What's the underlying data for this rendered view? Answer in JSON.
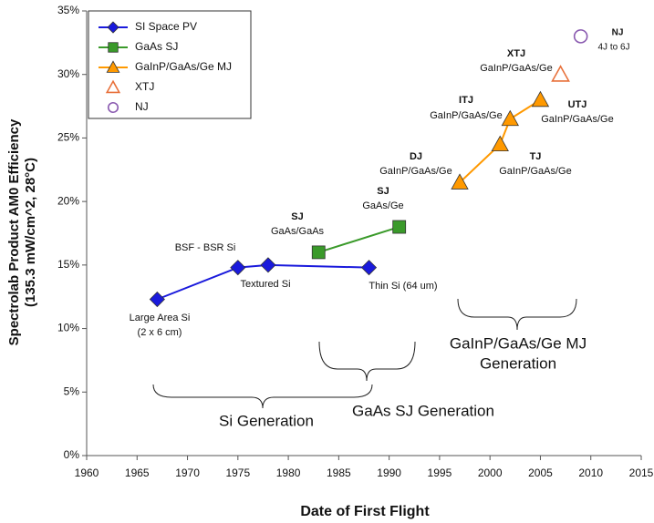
{
  "chart_data": {
    "type": "line",
    "xlabel": "Date of First Flight",
    "ylabel": [
      "Spectrolab Product AM0 Efficiency",
      "(135.3 mW/cm^2, 28°C)"
    ],
    "xlim": [
      1960,
      2015
    ],
    "xticks": [
      1960,
      1965,
      1970,
      1975,
      1980,
      1985,
      1990,
      1995,
      2000,
      2005,
      2010,
      2015
    ],
    "ylim": [
      0,
      35
    ],
    "yticks": [
      {
        "value": 0,
        "label": "0%"
      },
      {
        "value": 5,
        "label": "5%"
      },
      {
        "value": 10,
        "label": "10%"
      },
      {
        "value": 15,
        "label": "15%"
      },
      {
        "value": 20,
        "label": "20%"
      },
      {
        "value": 25,
        "label": "25%"
      },
      {
        "value": 30,
        "label": "30%"
      },
      {
        "value": 35,
        "label": "35%"
      }
    ],
    "series": [
      {
        "name": "SI Space PV",
        "color": "#1a1adc",
        "marker": "diamond",
        "filled": true,
        "x": [
          1967,
          1975,
          1978,
          1988
        ],
        "values": [
          12.3,
          14.8,
          15.0,
          14.8
        ]
      },
      {
        "name": "GaAs SJ",
        "color": "#3a9a2a",
        "marker": "square",
        "filled": true,
        "x": [
          1983,
          1991
        ],
        "values": [
          16.0,
          18.0
        ]
      },
      {
        "name": "GaInP/GaAs/Ge MJ",
        "color": "#ff9900",
        "marker": "triangle",
        "filled": true,
        "x": [
          1997,
          2001,
          2002,
          2005
        ],
        "values": [
          21.5,
          24.5,
          26.5,
          28.0
        ]
      },
      {
        "name": "XTJ",
        "color": "#e8703a",
        "marker": "triangle",
        "filled": false,
        "x": [
          2007
        ],
        "values": [
          30.0
        ]
      },
      {
        "name": "NJ",
        "color": "#8a5ab0",
        "marker": "circle",
        "filled": false,
        "x": [
          2009
        ],
        "values": [
          33.0
        ]
      }
    ],
    "annotations": [
      "Large Area Si",
      "(2 x 6 cm)",
      "BSF - BSR Si",
      "Textured Si",
      "Thin Si (64 um)",
      "SJ",
      "GaAs/GaAs",
      "SJ",
      "GaAs/Ge",
      "DJ",
      "GaInP/GaAs/Ge",
      "TJ",
      "GaInP/GaAs/Ge",
      "ITJ",
      "GaInP/GaAs/Ge",
      "UTJ",
      "GaInP/GaAs/Ge",
      "XTJ",
      "GaInP/GaAs/Ge",
      "NJ",
      "4J to 6J",
      "Si Generation",
      "GaAs SJ Generation",
      "GaInP/GaAs/Ge MJ",
      "Generation"
    ]
  }
}
